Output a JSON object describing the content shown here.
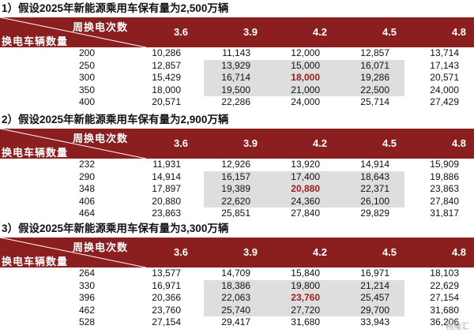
{
  "columns": [
    "3.6",
    "3.9",
    "4.2",
    "4.5",
    "4.8"
  ],
  "header_top": "周换电次数",
  "header_bottom": "换电车辆数量",
  "highlight_color": "#9e1b1b",
  "header_color": "#8b1f1f",
  "watermark": "格隆汇",
  "sections": [
    {
      "title": "1）假设2025年新能源乘用车保有量为2,500万辆",
      "rows": [
        {
          "label": "200",
          "values": [
            "10,286",
            "11,143",
            "12,000",
            "12,857",
            "13,714"
          ]
        },
        {
          "label": "250",
          "values": [
            "12,857",
            "13,929",
            "15,000",
            "16,071",
            "17,143"
          ]
        },
        {
          "label": "300",
          "values": [
            "15,429",
            "16,714",
            "18,000",
            "19,286",
            "20,571"
          ]
        },
        {
          "label": "350",
          "values": [
            "18,000",
            "19,500",
            "21,000",
            "22,500",
            "24,000"
          ]
        },
        {
          "label": "400",
          "values": [
            "20,571",
            "22,286",
            "24,000",
            "25,714",
            "27,429"
          ]
        }
      ]
    },
    {
      "title": "2）假设2025年新能源乘用车保有量为2,900万辆",
      "rows": [
        {
          "label": "232",
          "values": [
            "11,931",
            "12,926",
            "13,920",
            "14,914",
            "15,909"
          ]
        },
        {
          "label": "290",
          "values": [
            "14,914",
            "16,157",
            "17,400",
            "18,643",
            "19,886"
          ]
        },
        {
          "label": "348",
          "values": [
            "17,897",
            "19,389",
            "20,880",
            "22,371",
            "23,863"
          ]
        },
        {
          "label": "406",
          "values": [
            "20,880",
            "22,620",
            "24,360",
            "26,100",
            "27,840"
          ]
        },
        {
          "label": "464",
          "values": [
            "23,863",
            "25,851",
            "27,840",
            "29,829",
            "31,817"
          ]
        }
      ]
    },
    {
      "title": "3）假设2025年新能源乘用车保有量为3,300万辆",
      "rows": [
        {
          "label": "264",
          "values": [
            "13,577",
            "14,709",
            "15,840",
            "16,971",
            "18,103"
          ]
        },
        {
          "label": "330",
          "values": [
            "16,971",
            "18,386",
            "19,800",
            "21,214",
            "22,629"
          ]
        },
        {
          "label": "396",
          "values": [
            "20,366",
            "22,063",
            "23,760",
            "25,457",
            "27,154"
          ]
        },
        {
          "label": "462",
          "values": [
            "23,760",
            "25,740",
            "27,720",
            "29,700",
            "31,680"
          ]
        },
        {
          "label": "528",
          "values": [
            "27,154",
            "29,417",
            "31,680",
            "33,943",
            "36,206"
          ]
        }
      ]
    }
  ]
}
